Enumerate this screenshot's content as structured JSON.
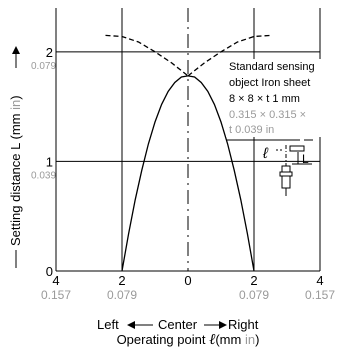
{
  "chart_data": {
    "type": "line",
    "title": "",
    "ylabel": "Setting distance L",
    "ylabel_unit_prefix": "(mm",
    "ylabel_unit_alt": "in",
    "ylabel_unit_suffix": ")",
    "xlabel": "Operating point",
    "xlabel_symbol": "ℓ",
    "xlabel_unit_prefix": "(mm",
    "xlabel_unit_alt": "in",
    "xlabel_unit_suffix": ")",
    "direction_left": "Left",
    "direction_center": "Center",
    "direction_right": "Right",
    "xlim": [
      -4,
      4
    ],
    "ylim": [
      0,
      2.4
    ],
    "x_ticks": [
      {
        "value": -4,
        "mm": "4",
        "inch": "0.157"
      },
      {
        "value": -2,
        "mm": "2",
        "inch": "0.079"
      },
      {
        "value": 0,
        "mm": "0",
        "inch": ""
      },
      {
        "value": 2,
        "mm": "2",
        "inch": "0.079"
      },
      {
        "value": 4,
        "mm": "4",
        "inch": "0.157"
      }
    ],
    "y_ticks": [
      {
        "value": 0,
        "mm": "0",
        "inch": ""
      },
      {
        "value": 1,
        "mm": "1",
        "inch": "0.039"
      },
      {
        "value": 2,
        "mm": "2",
        "inch": "0.079"
      }
    ],
    "grid": true,
    "annotation": {
      "line1": "Standard sensing",
      "line2": "object Iron sheet",
      "line3": "8 × 8 × t 1 mm",
      "line4": "0.315 × 0.315 ×",
      "line5": "t 0.039 in",
      "symbol_l": "ℓ",
      "symbol_L": "L"
    },
    "series": [
      {
        "style": "solid",
        "x": [
          -2.0,
          -1.8,
          -1.6,
          -1.4,
          -1.2,
          -1.0,
          -0.8,
          -0.6,
          -0.4,
          -0.2,
          0.0
        ],
        "y": [
          0.0,
          0.34,
          0.65,
          0.92,
          1.16,
          1.36,
          1.52,
          1.64,
          1.72,
          1.77,
          1.78
        ]
      },
      {
        "style": "solid",
        "x": [
          0.0,
          0.2,
          0.4,
          0.6,
          0.8,
          1.0,
          1.2,
          1.4,
          1.6,
          1.8,
          2.0
        ],
        "y": [
          1.78,
          1.77,
          1.72,
          1.64,
          1.52,
          1.36,
          1.16,
          0.92,
          0.65,
          0.34,
          0.0
        ]
      },
      {
        "style": "dashed",
        "x": [
          -2.5,
          -2.0,
          -1.5,
          -1.0,
          -0.5,
          0.0
        ],
        "y": [
          2.15,
          2.14,
          2.09,
          2.0,
          1.9,
          1.78
        ]
      },
      {
        "style": "dashed",
        "x": [
          0.0,
          0.5,
          1.0,
          1.5,
          2.0,
          2.5
        ],
        "y": [
          1.78,
          1.9,
          2.0,
          2.09,
          2.14,
          2.15
        ]
      }
    ]
  }
}
